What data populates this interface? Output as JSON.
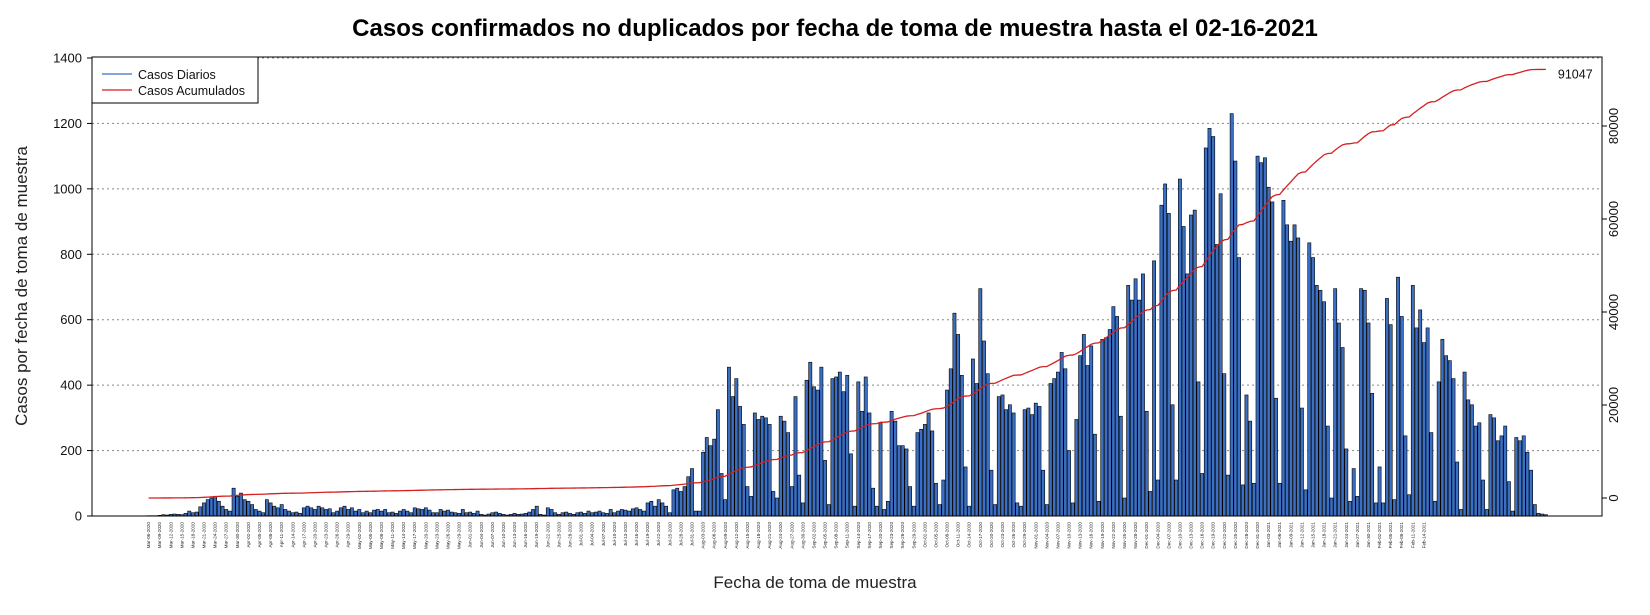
{
  "chart_data": {
    "type": "bar",
    "title": "Casos confirmados no duplicados por fecha de toma de muestra hasta el 02-16-2021",
    "xlabel": "Fecha de toma de muestra",
    "ylabel": "Casos por fecha de toma de muestra",
    "ylim": [
      0,
      1400
    ],
    "y_ticks": [
      0,
      200,
      400,
      600,
      800,
      1000,
      1200,
      1400
    ],
    "y2lim": [
      -3000,
      95000
    ],
    "y2_ticks": [
      0,
      20000,
      40000,
      60000,
      80000
    ],
    "y2_tick_labels": [
      "0",
      "20000",
      "40000",
      "60000",
      "80000"
    ],
    "grid": "horizontal-dotted",
    "legend_position": "top-left",
    "start_date": "2020-03-06",
    "label_every_days": 3,
    "label_count": 116,
    "series": [
      {
        "name": "Casos Diarios",
        "type": "bar",
        "color": "#3a6fc4",
        "values": [
          1,
          1,
          1,
          2,
          4,
          3,
          5,
          6,
          5,
          4,
          8,
          15,
          10,
          12,
          28,
          40,
          50,
          55,
          60,
          45,
          30,
          20,
          15,
          85,
          60,
          70,
          50,
          45,
          35,
          20,
          15,
          10,
          50,
          40,
          30,
          25,
          35,
          20,
          15,
          10,
          12,
          8,
          25,
          30,
          25,
          20,
          30,
          25,
          20,
          22,
          10,
          15,
          25,
          30,
          20,
          25,
          15,
          20,
          10,
          15,
          10,
          18,
          20,
          15,
          20,
          10,
          12,
          8,
          15,
          20,
          15,
          10,
          25,
          22,
          20,
          25,
          18,
          10,
          10,
          20,
          15,
          18,
          12,
          10,
          8,
          20,
          10,
          12,
          8,
          15,
          5,
          3,
          6,
          10,
          12,
          8,
          5,
          3,
          5,
          8,
          5,
          6,
          8,
          12,
          20,
          30,
          5,
          3,
          25,
          20,
          10,
          5,
          10,
          12,
          8,
          5,
          10,
          12,
          8,
          15,
          10,
          12,
          15,
          10,
          8,
          20,
          10,
          15,
          20,
          18,
          15,
          22,
          25,
          20,
          15,
          40,
          45,
          30,
          50,
          40,
          30,
          10,
          80,
          85,
          75,
          90,
          120,
          145,
          15,
          15,
          195,
          240,
          215,
          235,
          325,
          130,
          50,
          455,
          365,
          420,
          335,
          280,
          90,
          60,
          315,
          295,
          305,
          300,
          280,
          75,
          55,
          305,
          290,
          255,
          90,
          365,
          125,
          40,
          415,
          470,
          395,
          385,
          455,
          170,
          35,
          420,
          425,
          440,
          380,
          430,
          190,
          30,
          410,
          320,
          425,
          315,
          85,
          30,
          285,
          20,
          45,
          320,
          290,
          215,
          215,
          205,
          90,
          30,
          255,
          265,
          280,
          315,
          260,
          100,
          35,
          110,
          385,
          450,
          620,
          555,
          430,
          150,
          30,
          480,
          405,
          695,
          535,
          435,
          140,
          35,
          365,
          370,
          325,
          340,
          315,
          40,
          30,
          325,
          330,
          310,
          345,
          335,
          140,
          35,
          405,
          420,
          440,
          500,
          450,
          200,
          40,
          295,
          490,
          555,
          460,
          520,
          250,
          45,
          540,
          545,
          570,
          640,
          610,
          305,
          55,
          705,
          660,
          725,
          660,
          740,
          320,
          75,
          780,
          110,
          950,
          1015,
          925,
          340,
          110,
          1030,
          885,
          740,
          920,
          935,
          410,
          130,
          1125,
          1185,
          1160,
          830,
          985,
          435,
          125,
          1230,
          1085,
          790,
          95,
          370,
          290,
          100,
          1100,
          1080,
          1095,
          1005,
          960,
          360,
          100,
          965,
          890,
          840,
          890,
          850,
          330,
          80,
          835,
          790,
          705,
          690,
          655,
          275,
          55,
          695,
          590,
          515,
          205,
          45,
          145,
          60,
          695,
          690,
          590,
          375,
          40,
          150,
          40,
          665,
          585,
          50,
          730,
          610,
          245,
          65,
          705,
          575,
          630,
          530,
          575,
          255,
          45,
          410,
          540,
          490,
          475,
          420,
          165,
          20,
          440,
          355,
          340,
          275,
          285,
          110,
          20,
          310,
          300,
          230,
          245,
          275,
          105,
          15,
          240,
          230,
          245,
          195,
          140,
          35,
          8,
          6,
          4
        ]
      },
      {
        "name": "Casos Acumulados",
        "type": "line",
        "color": "#d42020",
        "final_label": "91047"
      }
    ]
  }
}
